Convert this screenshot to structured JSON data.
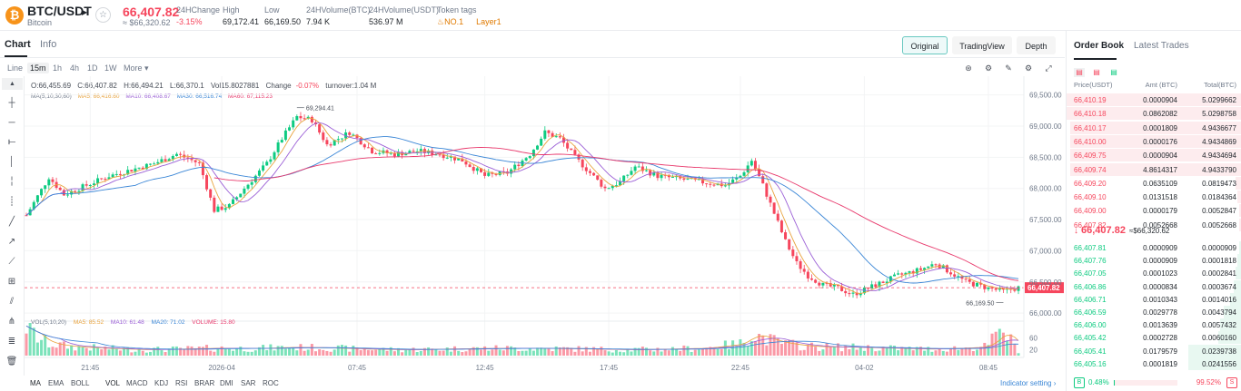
{
  "header": {
    "coin_glyph": "₿",
    "pair": "BTC/USDT",
    "coin_name": "Bitcoin",
    "price": "66,407.82",
    "price_usd": "≈ $66,320.62",
    "stats": [
      {
        "label": "24HChange",
        "value": "-3.15%"
      },
      {
        "label": "High",
        "value": "69,172.41"
      },
      {
        "label": "Low",
        "value": "66,169.50"
      },
      {
        "label": "24HVolume(BTC)",
        "value": "7.94 K"
      },
      {
        "label": "24HVolume(USDT)",
        "value": "536.97 M"
      }
    ],
    "token_tags_label": "Token tags",
    "tag_no1": "NO.1",
    "tag_layer1": "Layer1"
  },
  "chart_tabs": {
    "chart": "Chart",
    "info": "Info"
  },
  "view_buttons": {
    "original": "Original",
    "tradingview": "TradingView",
    "depth": "Depth"
  },
  "intervals": [
    "Line",
    "15m",
    "1h",
    "4h",
    "1D",
    "1W",
    "More"
  ],
  "active_interval": "15m",
  "ohlc": {
    "open": "O:66,455.69",
    "close": "C:66,407.82",
    "high": "H:66,494.21",
    "low": "L:66,370.1",
    "vol": "Vol15.8027881",
    "change_label": "Change",
    "change_value": "-0.07%",
    "turnover": "turnover:1.04 M"
  },
  "ma_legend": {
    "label": "MA(5,10,30,60)",
    "ma5": "MA5: 66,416.60",
    "ma10": "MA10: 66,408.67",
    "ma30": "MA30: 66,516.74",
    "ma60": "MA60: 67,115.23"
  },
  "vol_legend": {
    "label": "VOL(5,10,20)",
    "ma5": "MA5: 85.52",
    "ma10": "MA10: 61.48",
    "ma20": "MA20: 71.02",
    "volume": "VOLUME: 15.80"
  },
  "indicators": [
    "MA",
    "EMA",
    "BOLL",
    "VOL",
    "MACD",
    "KDJ",
    "RSI",
    "BRAR",
    "DMI",
    "SAR",
    "ROC"
  ],
  "indicator_setting": "Indicator setting",
  "colors": {
    "up": "#0ecb81",
    "down": "#f6465d",
    "ma5": "#e8a33d",
    "ma10": "#9b5fd6",
    "ma30": "#3a86d6",
    "ma60": "#e8396c"
  },
  "chart_data": {
    "type": "candlestick",
    "x_tick_labels": [
      "21:45",
      "2026-04",
      "07:45",
      "12:45",
      "17:45",
      "22:45",
      "04-02",
      "08:45"
    ],
    "y_tick_labels": [
      "69,500.00",
      "69,000.00",
      "68,500.00",
      "68,000.00",
      "67,500.00",
      "67,000.00",
      "66,500.00",
      "66,000.00"
    ],
    "ylim": [
      65900,
      69800
    ],
    "volume_tick_labels": [
      "60",
      "20"
    ],
    "last_price_label": "66,407.82",
    "high_annotation": "69,294.41",
    "low_annotation": "66,169.50",
    "price_path": [
      [
        0,
        67570
      ],
      [
        6,
        68180
      ],
      [
        10,
        67900
      ],
      [
        16,
        68050
      ],
      [
        22,
        68200
      ],
      [
        28,
        68300
      ],
      [
        34,
        68400
      ],
      [
        40,
        68550
      ],
      [
        46,
        68400
      ],
      [
        50,
        67650
      ],
      [
        54,
        67720
      ],
      [
        58,
        68000
      ],
      [
        64,
        68400
      ],
      [
        68,
        68800
      ],
      [
        72,
        69150
      ],
      [
        76,
        69100
      ],
      [
        80,
        68700
      ],
      [
        86,
        68900
      ],
      [
        92,
        68600
      ],
      [
        98,
        68550
      ],
      [
        104,
        68600
      ],
      [
        110,
        68550
      ],
      [
        116,
        68450
      ],
      [
        122,
        68200
      ],
      [
        128,
        68250
      ],
      [
        134,
        68550
      ],
      [
        138,
        68900
      ],
      [
        142,
        68800
      ],
      [
        146,
        68500
      ],
      [
        150,
        68250
      ],
      [
        154,
        68000
      ],
      [
        158,
        68100
      ],
      [
        162,
        68350
      ],
      [
        168,
        68200
      ],
      [
        174,
        68150
      ],
      [
        180,
        68100
      ],
      [
        186,
        68050
      ],
      [
        190,
        68200
      ],
      [
        193,
        68450
      ],
      [
        196,
        68050
      ],
      [
        199,
        67600
      ],
      [
        202,
        67150
      ],
      [
        205,
        66800
      ],
      [
        208,
        66600
      ],
      [
        212,
        66450
      ],
      [
        216,
        66400
      ],
      [
        220,
        66300
      ],
      [
        226,
        66450
      ],
      [
        232,
        66600
      ],
      [
        238,
        66700
      ],
      [
        242,
        66800
      ],
      [
        246,
        66650
      ],
      [
        250,
        66500
      ],
      [
        256,
        66400
      ],
      [
        260,
        66350
      ],
      [
        264,
        66408
      ]
    ],
    "vol_path": [
      [
        0,
        100
      ],
      [
        3,
        60
      ],
      [
        6,
        40
      ],
      [
        12,
        30
      ],
      [
        20,
        25
      ],
      [
        30,
        20
      ],
      [
        40,
        22
      ],
      [
        50,
        25
      ],
      [
        60,
        24
      ],
      [
        70,
        28
      ],
      [
        80,
        26
      ],
      [
        90,
        22
      ],
      [
        100,
        20
      ],
      [
        110,
        22
      ],
      [
        120,
        24
      ],
      [
        130,
        25
      ],
      [
        140,
        24
      ],
      [
        150,
        22
      ],
      [
        160,
        20
      ],
      [
        170,
        22
      ],
      [
        180,
        25
      ],
      [
        190,
        40
      ],
      [
        193,
        75
      ],
      [
        196,
        60
      ],
      [
        200,
        45
      ],
      [
        205,
        35
      ],
      [
        210,
        30
      ],
      [
        220,
        28
      ],
      [
        230,
        25
      ],
      [
        240,
        22
      ],
      [
        250,
        26
      ],
      [
        255,
        30
      ],
      [
        260,
        85
      ],
      [
        264,
        16
      ]
    ]
  },
  "order_book": {
    "tabs": [
      "Order Book",
      "Latest Trades"
    ],
    "headers": {
      "price": "Price(USDT)",
      "amt": "Amt (BTC)",
      "total": "Total(BTC)"
    },
    "asks": [
      {
        "p": "66,410.19",
        "a": "0.0000904",
        "t": "5.0299662",
        "d": 1.0
      },
      {
        "p": "66,410.18",
        "a": "0.0862082",
        "t": "5.0298758",
        "d": 1.0
      },
      {
        "p": "66,410.17",
        "a": "0.0001809",
        "t": "4.9436677",
        "d": 0.98
      },
      {
        "p": "66,410.00",
        "a": "0.0000176",
        "t": "4.9434869",
        "d": 0.98
      },
      {
        "p": "66,409.75",
        "a": "0.0000904",
        "t": "4.9434694",
        "d": 0.98
      },
      {
        "p": "66,409.74",
        "a": "4.8614317",
        "t": "4.9433790",
        "d": 0.98
      },
      {
        "p": "66,409.20",
        "a": "0.0635109",
        "t": "0.0819473",
        "d": 0.03
      },
      {
        "p": "66,409.10",
        "a": "0.0131518",
        "t": "0.0184364",
        "d": 0.02
      },
      {
        "p": "66,409.00",
        "a": "0.0000179",
        "t": "0.0052847",
        "d": 0.01
      },
      {
        "p": "66,407.82",
        "a": "0.0052668",
        "t": "0.0052668",
        "d": 0.01
      }
    ],
    "mid_arrow": "↓",
    "mid_price": "66,407.82",
    "mid_usd": "≈$66,320.62",
    "bids": [
      {
        "p": "66,407.81",
        "a": "0.0000909",
        "t": "0.0000909",
        "d": 0.01
      },
      {
        "p": "66,407.76",
        "a": "0.0000909",
        "t": "0.0001818",
        "d": 0.02
      },
      {
        "p": "66,407.05",
        "a": "0.0001023",
        "t": "0.0002841",
        "d": 0.03
      },
      {
        "p": "66,406.86",
        "a": "0.0000834",
        "t": "0.0003674",
        "d": 0.04
      },
      {
        "p": "66,406.71",
        "a": "0.0010343",
        "t": "0.0014016",
        "d": 0.06
      },
      {
        "p": "66,406.59",
        "a": "0.0029778",
        "t": "0.0043794",
        "d": 0.1
      },
      {
        "p": "66,406.00",
        "a": "0.0013639",
        "t": "0.0057432",
        "d": 0.12
      },
      {
        "p": "66,405.42",
        "a": "0.0002728",
        "t": "0.0060160",
        "d": 0.13
      },
      {
        "p": "66,405.41",
        "a": "0.0179579",
        "t": "0.0239738",
        "d": 0.3
      },
      {
        "p": "66,405.16",
        "a": "0.0001819",
        "t": "0.0241556",
        "d": 0.3
      }
    ],
    "buy_label": "B",
    "sell_label": "S",
    "buy_pct": "0.48%",
    "sell_pct": "99.52%",
    "buy_ratio": 0.0048
  }
}
